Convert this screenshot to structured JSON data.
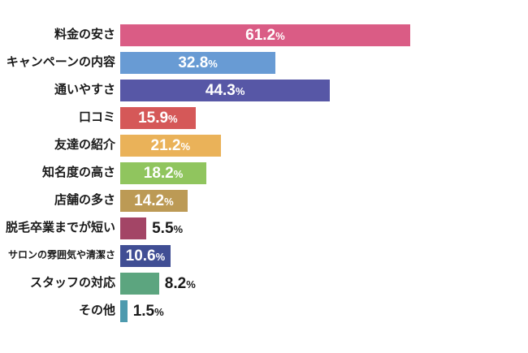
{
  "chart_data": {
    "type": "bar",
    "orientation": "horizontal",
    "title": "",
    "xlabel": "",
    "ylabel": "",
    "unit": "%",
    "xlim": [
      0,
      70
    ],
    "grid": false,
    "legend": "none",
    "value_labels": "inside-if-fits",
    "categories": [
      "料金の安さ",
      "キャンペーンの内容",
      "通いやすさ",
      "口コミ",
      "友達の紹介",
      "知名度の高さ",
      "店舗の多さ",
      "脱毛卒業までが短い",
      "サロンの雰囲気や清潔さ",
      "スタッフの対応",
      "その他"
    ],
    "values": [
      61.2,
      32.8,
      44.3,
      15.9,
      21.2,
      18.2,
      14.2,
      5.5,
      10.6,
      8.2,
      1.5
    ],
    "value_display": [
      "61.2",
      "32.8",
      "44.3",
      "15.9",
      "21.2",
      "18.2",
      "14.2",
      "5.5",
      "10.6",
      "8.2",
      "1.5"
    ],
    "colors": [
      "#da5c85",
      "#689bd4",
      "#5757a6",
      "#d55858",
      "#eab259",
      "#90c55e",
      "#bc9a55",
      "#a34566",
      "#404e94",
      "#5ca57f",
      "#4d9aae"
    ],
    "percent_sign": "%"
  },
  "layout_colors": {
    "background": "#ffffff",
    "label_text": "#1a1a1a",
    "inside_value_text": "#ffffff"
  }
}
